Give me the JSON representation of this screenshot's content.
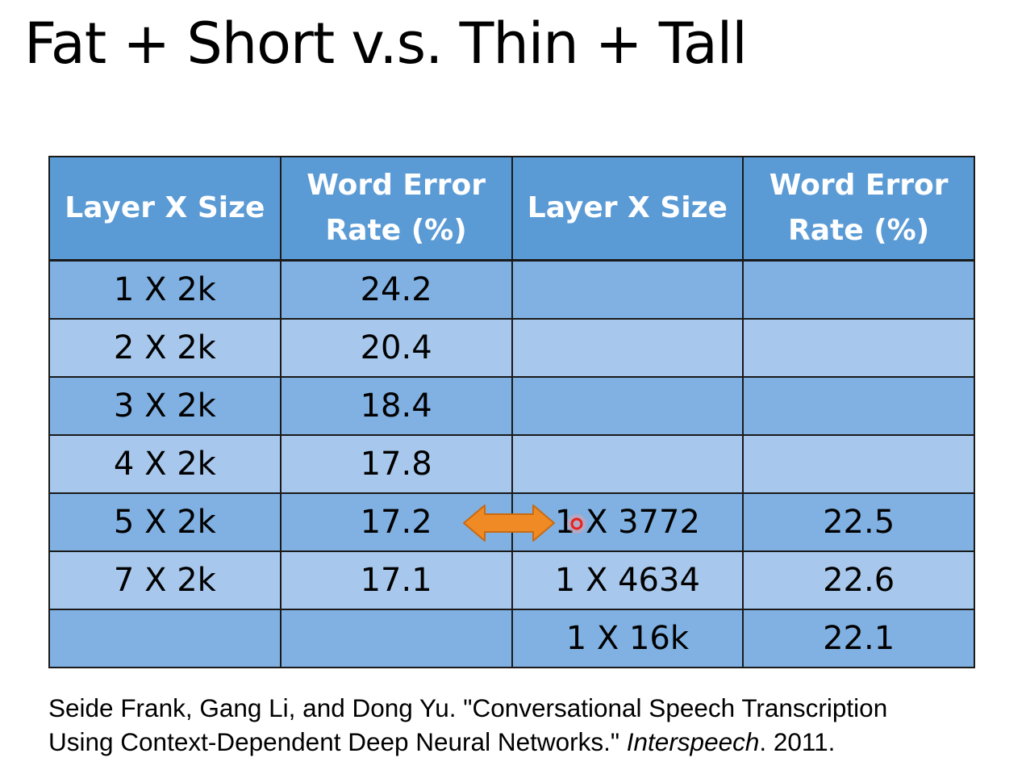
{
  "title": "Fat + Short v.s. Thin + Tall",
  "table": {
    "headers": [
      "Layer X Size",
      "Word Error Rate (%)",
      "Layer X Size",
      "Word Error Rate (%)"
    ],
    "rows": [
      [
        "1 X 2k",
        "24.2",
        "",
        ""
      ],
      [
        "2 X 2k",
        "20.4",
        "",
        ""
      ],
      [
        "3 X 2k",
        "18.4",
        "",
        ""
      ],
      [
        "4 X 2k",
        "17.8",
        "",
        ""
      ],
      [
        "5 X 2k",
        "17.2",
        "1 X 3772",
        "22.5"
      ],
      [
        "7 X 2k",
        "17.1",
        "1 X 4634",
        "22.6"
      ],
      [
        "",
        "",
        "1 X 16k",
        "22.1"
      ]
    ]
  },
  "citation": {
    "line1": "Seide Frank, Gang Li, and Dong Yu. \"Conversational Speech Transcription",
    "line2_prefix": "Using Context-Dependent Deep Neural Networks.\" ",
    "line2_italic": "Interspeech",
    "line2_suffix": ". 2011."
  },
  "colors": {
    "header_bg": "#5b9bd5",
    "row_odd_bg": "#80b1e2",
    "row_even_bg": "#a7c8ec",
    "arrow": "#f08a24",
    "cursor": "#e8221c"
  },
  "icons": {
    "arrow": "double-headed-arrow-icon",
    "cursor": "pointer-highlight-icon"
  }
}
